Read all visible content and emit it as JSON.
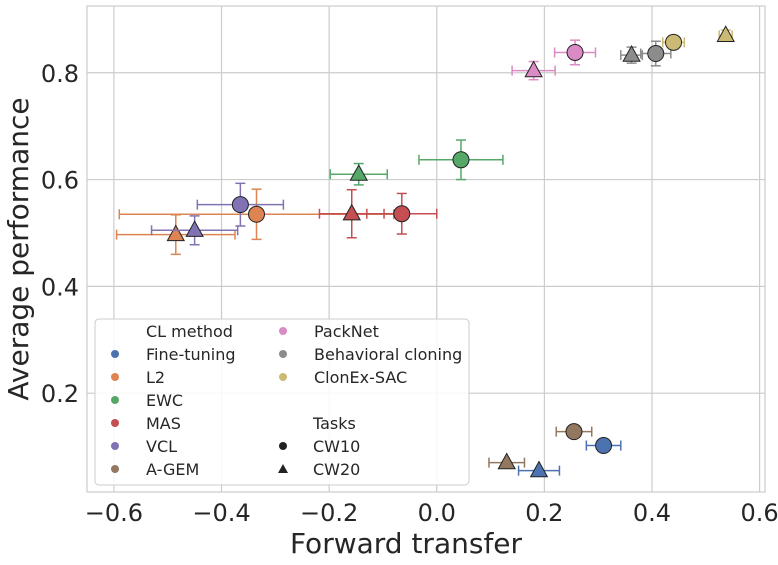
{
  "chart_data": {
    "type": "scatter",
    "title": "",
    "xlabel": "Forward transfer",
    "ylabel": "Average performance",
    "xlim": [
      -0.65,
      0.61
    ],
    "ylim": [
      0.015,
      0.925
    ],
    "xticks": [
      -0.6,
      -0.4,
      -0.2,
      0.0,
      0.2,
      0.4,
      0.6
    ],
    "yticks": [
      0.2,
      0.4,
      0.6,
      0.8
    ],
    "xtick_labels": [
      "−0.6",
      "−0.4",
      "−0.2",
      "0.0",
      "0.2",
      "0.4",
      "0.6"
    ],
    "ytick_labels": [
      "0.2",
      "0.4",
      "0.6",
      "0.8"
    ],
    "grid": true,
    "legend": {
      "placement": "lower-left",
      "method_title": "CL method",
      "tasks_title": "Tasks",
      "tasks": [
        {
          "name": "CW10",
          "marker": "circle"
        },
        {
          "name": "CW20",
          "marker": "triangle"
        }
      ]
    },
    "series": [
      {
        "name": "Fine-tuning",
        "color": "#4c72b0",
        "points": [
          {
            "task": "CW10",
            "x": 0.31,
            "y": 0.102,
            "xerr": 0.032,
            "yerr": 0.0
          },
          {
            "task": "CW20",
            "x": 0.19,
            "y": 0.055,
            "xerr": 0.038,
            "yerr": 0.0
          }
        ]
      },
      {
        "name": "L2",
        "color": "#dd8452",
        "points": [
          {
            "task": "CW10",
            "x": -0.335,
            "y": 0.535,
            "xerr": 0.255,
            "yerr": 0.047
          },
          {
            "task": "CW20",
            "x": -0.485,
            "y": 0.497,
            "xerr": 0.11,
            "yerr": 0.037
          }
        ]
      },
      {
        "name": "EWC",
        "color": "#55a868",
        "points": [
          {
            "task": "CW10",
            "x": 0.045,
            "y": 0.637,
            "xerr": 0.078,
            "yerr": 0.037
          },
          {
            "task": "CW20",
            "x": -0.145,
            "y": 0.61,
            "xerr": 0.053,
            "yerr": 0.02
          }
        ]
      },
      {
        "name": "MAS",
        "color": "#c44e52",
        "points": [
          {
            "task": "CW10",
            "x": -0.065,
            "y": 0.536,
            "xerr": 0.065,
            "yerr": 0.038
          },
          {
            "task": "CW20",
            "x": -0.158,
            "y": 0.536,
            "xerr": 0.06,
            "yerr": 0.045
          }
        ]
      },
      {
        "name": "VCL",
        "color": "#8172b3",
        "points": [
          {
            "task": "CW10",
            "x": -0.365,
            "y": 0.553,
            "xerr": 0.08,
            "yerr": 0.04
          },
          {
            "task": "CW20",
            "x": -0.45,
            "y": 0.505,
            "xerr": 0.08,
            "yerr": 0.027
          }
        ]
      },
      {
        "name": "A-GEM",
        "color": "#937860",
        "points": [
          {
            "task": "CW10",
            "x": 0.255,
            "y": 0.128,
            "xerr": 0.033,
            "yerr": 0.0
          },
          {
            "task": "CW20",
            "x": 0.13,
            "y": 0.07,
            "xerr": 0.033,
            "yerr": 0.0
          }
        ]
      },
      {
        "name": "PackNet",
        "color": "#da8bc3",
        "points": [
          {
            "task": "CW10",
            "x": 0.257,
            "y": 0.838,
            "xerr": 0.038,
            "yerr": 0.023
          },
          {
            "task": "CW20",
            "x": 0.18,
            "y": 0.804,
            "xerr": 0.04,
            "yerr": 0.017
          }
        ]
      },
      {
        "name": "Behavioral cloning",
        "color": "#8c8c8c",
        "points": [
          {
            "task": "CW10",
            "x": 0.407,
            "y": 0.836,
            "xerr": 0.028,
            "yerr": 0.023
          },
          {
            "task": "CW20",
            "x": 0.362,
            "y": 0.833,
            "xerr": 0.02,
            "yerr": 0.015
          }
        ]
      },
      {
        "name": "ClonEx-SAC",
        "color": "#ccb974",
        "points": [
          {
            "task": "CW10",
            "x": 0.44,
            "y": 0.857,
            "xerr": 0.02,
            "yerr": 0.012
          },
          {
            "task": "CW20",
            "x": 0.537,
            "y": 0.87,
            "xerr": 0.012,
            "yerr": 0.01
          }
        ]
      }
    ]
  }
}
